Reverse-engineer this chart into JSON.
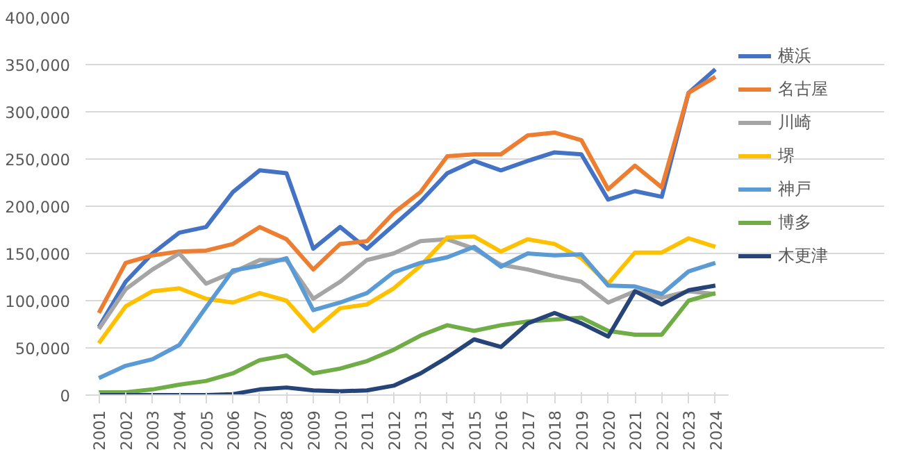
{
  "chart_data": {
    "type": "line",
    "categories": [
      "2001",
      "2002",
      "2003",
      "2004",
      "2005",
      "2006",
      "2007",
      "2008",
      "2009",
      "2010",
      "2011",
      "2012",
      "2013",
      "2014",
      "2015",
      "2016",
      "2017",
      "2018",
      "2019",
      "2020",
      "2021",
      "2022",
      "2023",
      "2024"
    ],
    "ylim": [
      0,
      400000
    ],
    "yticks": [
      {
        "value": 0,
        "label": "0"
      },
      {
        "value": 50000,
        "label": "50,000"
      },
      {
        "value": 100000,
        "label": "100,000"
      },
      {
        "value": 150000,
        "label": "150,000"
      },
      {
        "value": 200000,
        "label": "200,000"
      },
      {
        "value": 250000,
        "label": "250,000"
      },
      {
        "value": 300000,
        "label": "300,000"
      },
      {
        "value": 350000,
        "label": "350,000"
      },
      {
        "value": 400000,
        "label": "400,000"
      }
    ],
    "grid": "y",
    "legend": "right",
    "marker": "none",
    "line_style": "solid",
    "series": [
      {
        "name": "横浜",
        "color": "#4472c4",
        "values": [
          72000,
          120000,
          150000,
          172000,
          178000,
          215000,
          238000,
          235000,
          155000,
          178000,
          155000,
          180000,
          205000,
          235000,
          248000,
          238000,
          248000,
          257000,
          255000,
          207000,
          216000,
          210000,
          320000,
          345000
        ]
      },
      {
        "name": "名古屋",
        "color": "#ed7d31",
        "values": [
          87000,
          140000,
          148000,
          152000,
          153000,
          160000,
          178000,
          165000,
          133000,
          160000,
          163000,
          193000,
          215000,
          253000,
          255000,
          255000,
          275000,
          278000,
          270000,
          218000,
          243000,
          220000,
          320000,
          337000
        ]
      },
      {
        "name": "川崎",
        "color": "#a5a5a5",
        "values": [
          70000,
          112000,
          133000,
          150000,
          118000,
          130000,
          143000,
          143000,
          102000,
          120000,
          143000,
          150000,
          163000,
          165000,
          155000,
          138000,
          133000,
          126000,
          120000,
          98000,
          110000,
          103000,
          110000,
          107000
        ]
      },
      {
        "name": "堺",
        "color": "#ffc000",
        "values": [
          55000,
          94000,
          110000,
          113000,
          102000,
          98000,
          108000,
          100000,
          68000,
          92000,
          96000,
          113000,
          137000,
          167000,
          168000,
          152000,
          165000,
          160000,
          145000,
          118000,
          151000,
          151000,
          166000,
          157000
        ]
      },
      {
        "name": "神戸",
        "color": "#5b9bd5",
        "values": [
          18000,
          31000,
          38000,
          53000,
          93000,
          132000,
          137000,
          145000,
          90000,
          98000,
          108000,
          130000,
          140000,
          146000,
          157000,
          136000,
          150000,
          148000,
          149000,
          116000,
          115000,
          107000,
          131000,
          140000
        ]
      },
      {
        "name": "博多",
        "color": "#70ad47",
        "values": [
          3000,
          3000,
          6000,
          11000,
          15000,
          23000,
          37000,
          42000,
          23000,
          28000,
          36000,
          48000,
          63000,
          74000,
          68000,
          74000,
          78000,
          80000,
          82000,
          68000,
          64000,
          64000,
          100000,
          108000
        ]
      },
      {
        "name": "木更津",
        "color": "#264478",
        "values": [
          0,
          0,
          0,
          0,
          0,
          1000,
          6000,
          8000,
          5000,
          4000,
          5000,
          10000,
          23000,
          40000,
          59000,
          51000,
          76000,
          87000,
          76000,
          62000,
          110000,
          96000,
          111000,
          116000
        ]
      }
    ]
  }
}
